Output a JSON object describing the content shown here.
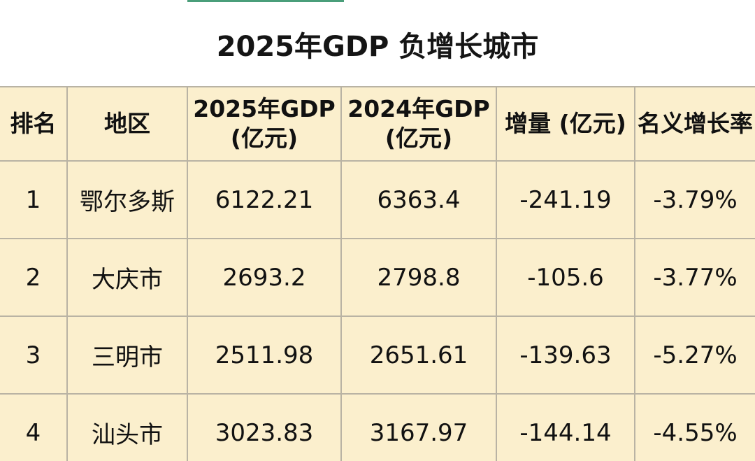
{
  "title": "2025年GDP 负增长城市",
  "table": {
    "headers": [
      "排名",
      "地区",
      "2025年GDP (亿元)",
      "2024年GDP (亿元)",
      "增量 (亿元)",
      "名义增长率"
    ],
    "rows": [
      [
        "1",
        "鄂尔多斯",
        "6122.21",
        "6363.4",
        "-241.19",
        "-3.79%"
      ],
      [
        "2",
        "大庆市",
        "2693.2",
        "2798.8",
        "-105.6",
        "-3.77%"
      ],
      [
        "3",
        "三明市",
        "2511.98",
        "2651.61",
        "-139.63",
        "-5.27%"
      ],
      [
        "4",
        "汕头市",
        "3023.83",
        "3167.97",
        "-144.14",
        "-4.55%"
      ]
    ]
  }
}
